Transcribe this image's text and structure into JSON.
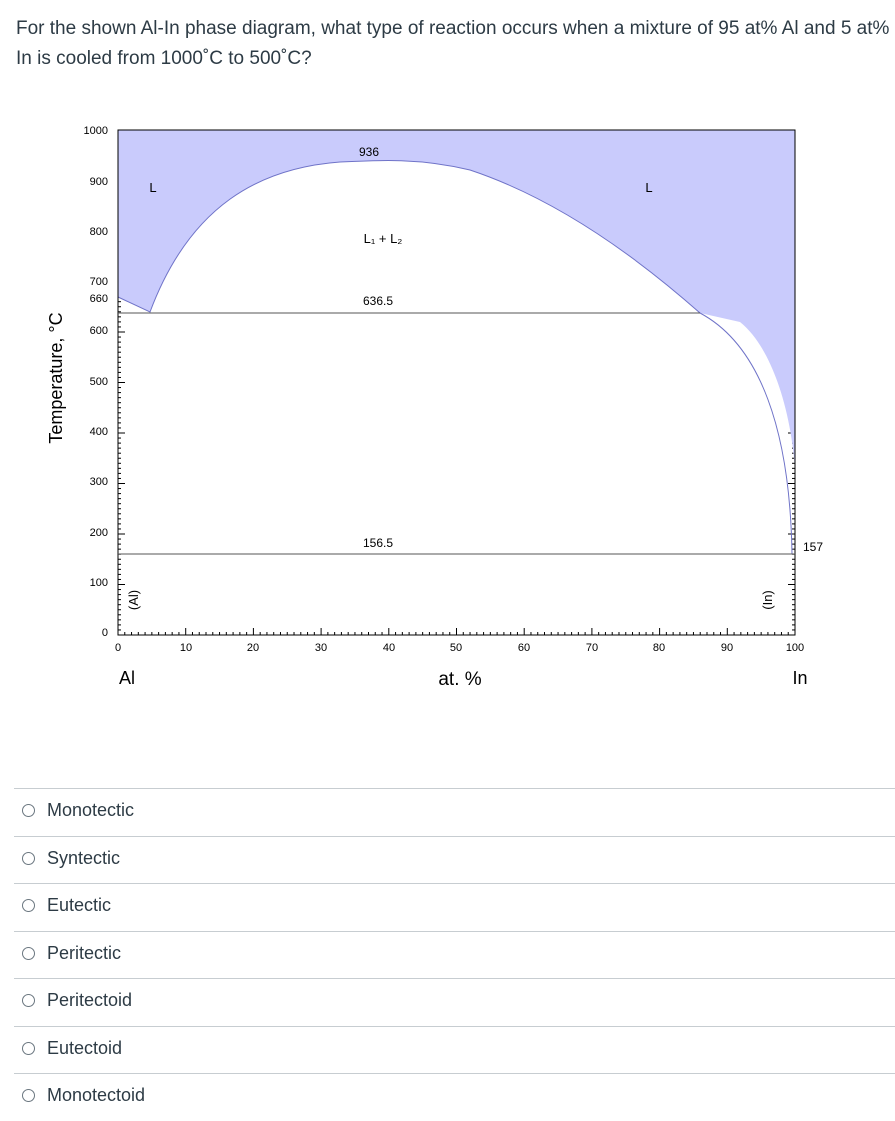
{
  "question": {
    "text": "For the shown Al-In phase diagram, what type of reaction occurs when a mixture of 95 at% Al and 5 at% In is cooled from 1000˚C to 500˚C?"
  },
  "diagram": {
    "y_axis_label": "Temperature, °C",
    "x_axis_label": "at. %",
    "left_element": "Al",
    "right_element": "In",
    "y_ticks": [
      "1000",
      "900",
      "800",
      "700",
      "660",
      "600",
      "500",
      "400",
      "300",
      "200",
      "100",
      "0"
    ],
    "x_ticks": [
      "0",
      "10",
      "20",
      "30",
      "40",
      "50",
      "60",
      "70",
      "80",
      "90",
      "100"
    ],
    "region_labels": {
      "liquid_left": "L",
      "liquid_right": "L",
      "miscibility_gap": "L₁ + L₂",
      "al_solid": "(Al)",
      "in_solid": "(In)"
    },
    "temperature_labels": {
      "critical_point": "936",
      "monotectic": "636.5",
      "eutectic": "156.5",
      "in_melting": "157"
    },
    "colors": {
      "liquid_fill": "#c9cbfc",
      "liquid_line": "#6f73c8",
      "axis": "#000000"
    }
  },
  "answers": [
    {
      "label": "Monotectic"
    },
    {
      "label": "Syntectic"
    },
    {
      "label": "Eutectic"
    },
    {
      "label": "Peritectic"
    },
    {
      "label": "Peritectoid"
    },
    {
      "label": "Eutectoid"
    },
    {
      "label": "Monotectoid"
    }
  ]
}
